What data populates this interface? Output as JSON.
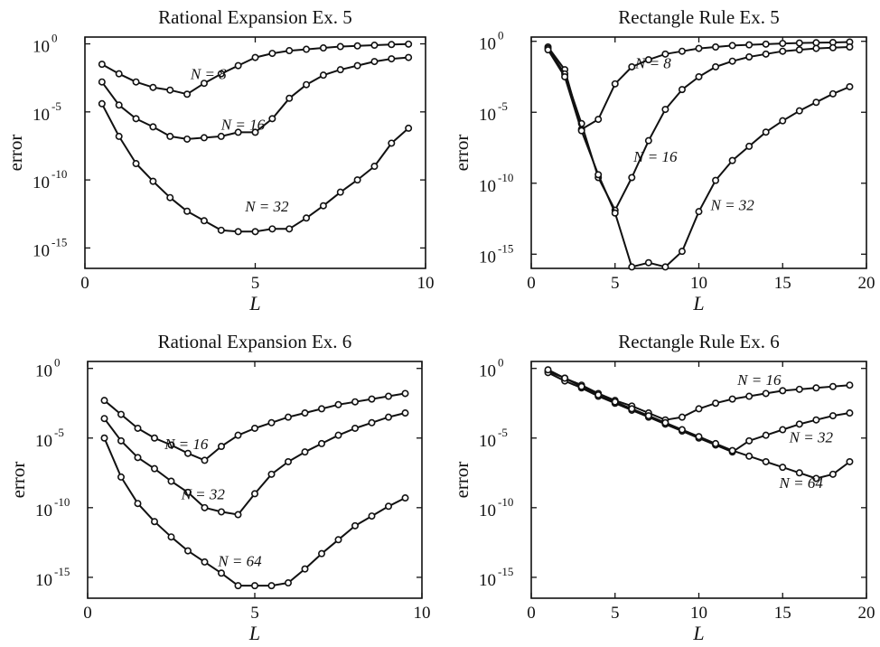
{
  "chart_data": [
    {
      "type": "line",
      "title": "Rational Expansion  Ex. 5",
      "xlabel": "L",
      "ylabel": "error",
      "xlim": [
        0,
        10
      ],
      "ylim": [
        -16.5,
        0.5
      ],
      "yscale": "log",
      "xticks": [
        0,
        5,
        10
      ],
      "yticks": [
        {
          "value": 0,
          "base": "10",
          "exp": "0"
        },
        {
          "value": -5,
          "base": "10",
          "exp": "-5"
        },
        {
          "value": -10,
          "base": "10",
          "exp": "-10"
        },
        {
          "value": -15,
          "base": "10",
          "exp": "-15"
        }
      ],
      "series": [
        {
          "name": "N = 8",
          "label_at": [
            3.1,
            -2.6
          ],
          "x": [
            0.5,
            1,
            1.5,
            2,
            2.5,
            3,
            3.5,
            4,
            4.5,
            5,
            5.5,
            6,
            6.5,
            7,
            7.5,
            8,
            8.5,
            9,
            9.5
          ],
          "y": [
            -1.5,
            -2.2,
            -2.8,
            -3.2,
            -3.4,
            -3.7,
            -2.9,
            -2.2,
            -1.6,
            -1.0,
            -0.7,
            -0.5,
            -0.4,
            -0.3,
            -0.2,
            -0.15,
            -0.1,
            -0.05,
            -0.02
          ]
        },
        {
          "name": "N = 16",
          "label_at": [
            4.0,
            -6.3
          ],
          "x": [
            0.5,
            1,
            1.5,
            2,
            2.5,
            3,
            3.5,
            4,
            4.5,
            5,
            5.5,
            6,
            6.5,
            7,
            7.5,
            8,
            8.5,
            9,
            9.5
          ],
          "y": [
            -2.8,
            -4.5,
            -5.5,
            -6.1,
            -6.8,
            -7.0,
            -6.9,
            -6.8,
            -6.5,
            -6.5,
            -5.5,
            -4.0,
            -3.0,
            -2.3,
            -1.9,
            -1.6,
            -1.3,
            -1.1,
            -1.0
          ]
        },
        {
          "name": "N = 32",
          "label_at": [
            4.7,
            -12.3
          ],
          "x": [
            0.5,
            1,
            1.5,
            2,
            2.5,
            3,
            3.5,
            4,
            4.5,
            5,
            5.5,
            6,
            6.5,
            7,
            7.5,
            8,
            8.5,
            9,
            9.5
          ],
          "y": [
            -4.4,
            -6.8,
            -8.8,
            -10.1,
            -11.3,
            -12.3,
            -13.0,
            -13.7,
            -13.8,
            -13.8,
            -13.6,
            -13.6,
            -12.8,
            -11.9,
            -10.9,
            -10.0,
            -9.0,
            -7.3,
            -6.2
          ]
        }
      ]
    },
    {
      "type": "line",
      "title": "Rectangle Rule  Ex. 5",
      "xlabel": "L",
      "ylabel": "error",
      "xlim": [
        0,
        20
      ],
      "ylim": [
        -16,
        0.3
      ],
      "yscale": "log",
      "xticks": [
        0,
        5,
        10,
        15,
        20
      ],
      "yticks": [
        {
          "value": 0,
          "base": "10",
          "exp": "0"
        },
        {
          "value": -5,
          "base": "10",
          "exp": "-5"
        },
        {
          "value": -10,
          "base": "10",
          "exp": "-10"
        },
        {
          "value": -15,
          "base": "10",
          "exp": "-15"
        }
      ],
      "series": [
        {
          "name": "N = 8",
          "label_at": [
            6.2,
            -1.9
          ],
          "x": [
            1,
            2,
            3,
            4,
            5,
            6,
            7,
            8,
            9,
            10,
            11,
            12,
            13,
            14,
            15,
            16,
            17,
            18,
            19
          ],
          "y": [
            -0.4,
            -2.0,
            -6.2,
            -5.5,
            -3.0,
            -1.8,
            -1.3,
            -0.9,
            -0.7,
            -0.5,
            -0.4,
            -0.3,
            -0.25,
            -0.2,
            -0.15,
            -0.12,
            -0.1,
            -0.08,
            -0.05
          ]
        },
        {
          "name": "N = 16",
          "label_at": [
            6.1,
            -8.5
          ],
          "x": [
            1,
            2,
            3,
            4,
            5,
            6,
            7,
            8,
            9,
            10,
            11,
            12,
            13,
            14,
            15,
            16,
            17,
            18,
            19
          ],
          "y": [
            -0.5,
            -2.3,
            -5.8,
            -9.6,
            -11.9,
            -9.6,
            -7.0,
            -4.8,
            -3.4,
            -2.5,
            -1.8,
            -1.4,
            -1.1,
            -0.9,
            -0.7,
            -0.6,
            -0.5,
            -0.45,
            -0.4
          ]
        },
        {
          "name": "N = 32",
          "label_at": [
            10.7,
            -11.9
          ],
          "x": [
            1,
            2,
            3,
            4,
            5,
            6,
            7,
            8,
            9,
            10,
            11,
            12,
            13,
            14,
            15,
            16,
            17,
            18,
            19
          ],
          "y": [
            -0.6,
            -2.5,
            -6.3,
            -9.4,
            -12.1,
            -15.9,
            -15.6,
            -15.9,
            -14.8,
            -12.0,
            -9.8,
            -8.4,
            -7.4,
            -6.4,
            -5.6,
            -4.9,
            -4.3,
            -3.7,
            -3.2
          ]
        }
      ]
    },
    {
      "type": "line",
      "title": "Rational Expansion  Ex. 6",
      "xlabel": "L",
      "ylabel": "error",
      "xlim": [
        0,
        10
      ],
      "ylim": [
        -16.5,
        0.5
      ],
      "yscale": "log",
      "xticks": [
        0,
        5,
        10
      ],
      "yticks": [
        {
          "value": 0,
          "base": "10",
          "exp": "0"
        },
        {
          "value": -5,
          "base": "10",
          "exp": "-5"
        },
        {
          "value": -10,
          "base": "10",
          "exp": "-10"
        },
        {
          "value": -15,
          "base": "10",
          "exp": "-15"
        }
      ],
      "series": [
        {
          "name": "N = 16",
          "label_at": [
            2.3,
            -5.8
          ],
          "x": [
            0.5,
            1,
            1.5,
            2,
            2.5,
            3,
            3.5,
            4,
            4.5,
            5,
            5.5,
            6,
            6.5,
            7,
            7.5,
            8,
            8.5,
            9,
            9.5
          ],
          "y": [
            -2.3,
            -3.3,
            -4.3,
            -5.0,
            -5.5,
            -6.1,
            -6.6,
            -5.6,
            -4.8,
            -4.3,
            -3.9,
            -3.5,
            -3.2,
            -2.9,
            -2.6,
            -2.4,
            -2.2,
            -2.0,
            -1.8
          ]
        },
        {
          "name": "N = 32",
          "label_at": [
            2.8,
            -9.4
          ],
          "x": [
            0.5,
            1,
            1.5,
            2,
            2.5,
            3,
            3.5,
            4,
            4.5,
            5,
            5.5,
            6,
            6.5,
            7,
            7.5,
            8,
            8.5,
            9,
            9.5
          ],
          "y": [
            -3.6,
            -5.2,
            -6.4,
            -7.2,
            -8.1,
            -8.9,
            -10.0,
            -10.3,
            -10.5,
            -9.0,
            -7.6,
            -6.7,
            -6.0,
            -5.4,
            -4.8,
            -4.3,
            -3.9,
            -3.5,
            -3.2
          ]
        },
        {
          "name": "N = 64",
          "label_at": [
            3.9,
            -14.2
          ],
          "x": [
            0.5,
            1,
            1.5,
            2,
            2.5,
            3,
            3.5,
            4,
            4.5,
            5,
            5.5,
            6,
            6.5,
            7,
            7.5,
            8,
            8.5,
            9,
            9.5
          ],
          "y": [
            -5.0,
            -7.8,
            -9.7,
            -11.0,
            -12.1,
            -13.1,
            -13.9,
            -14.7,
            -15.6,
            -15.6,
            -15.6,
            -15.4,
            -14.4,
            -13.3,
            -12.3,
            -11.3,
            -10.6,
            -9.9,
            -9.3
          ]
        }
      ]
    },
    {
      "type": "line",
      "title": "Rectangle Rule  Ex. 6",
      "xlabel": "L",
      "ylabel": "error",
      "xlim": [
        0,
        20
      ],
      "ylim": [
        -16.5,
        0.5
      ],
      "yscale": "log",
      "xticks": [
        0,
        5,
        10,
        15,
        20
      ],
      "yticks": [
        {
          "value": 0,
          "base": "10",
          "exp": "0"
        },
        {
          "value": -5,
          "base": "10",
          "exp": "-5"
        },
        {
          "value": -10,
          "base": "10",
          "exp": "-10"
        },
        {
          "value": -15,
          "base": "10",
          "exp": "-15"
        }
      ],
      "series": [
        {
          "name": "N = 16",
          "label_at": [
            12.3,
            -1.2
          ],
          "x": [
            1,
            2,
            3,
            4,
            5,
            6,
            7,
            8,
            9,
            10,
            11,
            12,
            13,
            14,
            15,
            16,
            17,
            18,
            19
          ],
          "y": [
            -0.2,
            -0.7,
            -1.2,
            -1.8,
            -2.3,
            -2.7,
            -3.2,
            -3.7,
            -3.5,
            -2.9,
            -2.5,
            -2.2,
            -2.0,
            -1.8,
            -1.6,
            -1.5,
            -1.4,
            -1.3,
            -1.2
          ]
        },
        {
          "name": "N = 32",
          "label_at": [
            15.4,
            -5.3
          ],
          "x": [
            1,
            2,
            3,
            4,
            5,
            6,
            7,
            8,
            9,
            10,
            11,
            12,
            13,
            14,
            15,
            16,
            17,
            18,
            19
          ],
          "y": [
            -0.3,
            -0.9,
            -1.4,
            -2.0,
            -2.5,
            -3.0,
            -3.5,
            -4.0,
            -4.5,
            -5.0,
            -5.5,
            -6.0,
            -5.2,
            -4.8,
            -4.4,
            -4.0,
            -3.7,
            -3.4,
            -3.2
          ]
        },
        {
          "name": "N = 64",
          "label_at": [
            14.8,
            -8.6
          ],
          "x": [
            1,
            2,
            3,
            4,
            5,
            6,
            7,
            8,
            9,
            10,
            11,
            12,
            13,
            14,
            15,
            16,
            17,
            18,
            19
          ],
          "y": [
            -0.1,
            -0.7,
            -1.3,
            -1.9,
            -2.4,
            -2.9,
            -3.4,
            -3.9,
            -4.4,
            -4.9,
            -5.4,
            -5.9,
            -6.3,
            -6.7,
            -7.1,
            -7.5,
            -7.9,
            -7.6,
            -6.7
          ]
        }
      ]
    }
  ]
}
